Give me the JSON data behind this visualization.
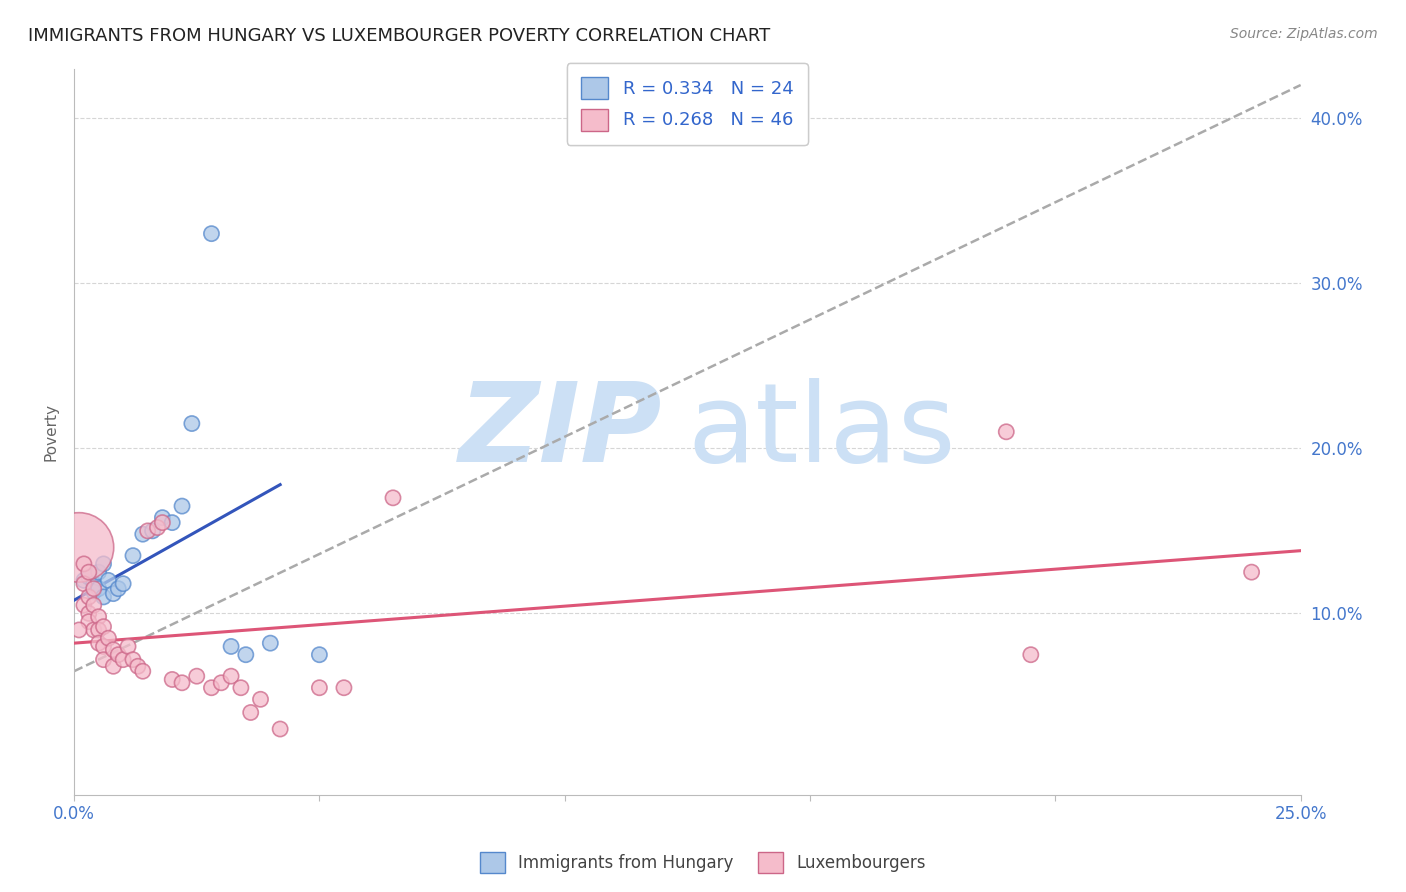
{
  "title": "IMMIGRANTS FROM HUNGARY VS LUXEMBOURGER POVERTY CORRELATION CHART",
  "source": "Source: ZipAtlas.com",
  "ylabel": "Poverty",
  "yaxis_labels": [
    "10.0%",
    "20.0%",
    "30.0%",
    "40.0%"
  ],
  "yaxis_values": [
    0.1,
    0.2,
    0.3,
    0.4
  ],
  "legend_entry1": "R = 0.334   N = 24",
  "legend_entry2": "R = 0.268   N = 46",
  "legend_label1": "Immigrants from Hungary",
  "legend_label2": "Luxembourgers",
  "blue_color": "#adc8e8",
  "blue_line_color": "#3355bb",
  "blue_edge_color": "#5588cc",
  "pink_color": "#f5bccb",
  "pink_line_color": "#dd5577",
  "pink_edge_color": "#cc6688",
  "watermark_zip": "ZIP",
  "watermark_atlas": "atlas",
  "watermark_color": "#cce0f5",
  "background_color": "#ffffff",
  "grid_color": "#cccccc",
  "title_color": "#222222",
  "axis_label_color": "#4477cc",
  "blue_scatter": [
    [
      0.002,
      0.12
    ],
    [
      0.003,
      0.122
    ],
    [
      0.004,
      0.118
    ],
    [
      0.004,
      0.113
    ],
    [
      0.005,
      0.125
    ],
    [
      0.005,
      0.115
    ],
    [
      0.006,
      0.13
    ],
    [
      0.006,
      0.11
    ],
    [
      0.007,
      0.12
    ],
    [
      0.008,
      0.112
    ],
    [
      0.009,
      0.115
    ],
    [
      0.01,
      0.118
    ],
    [
      0.012,
      0.135
    ],
    [
      0.014,
      0.148
    ],
    [
      0.016,
      0.15
    ],
    [
      0.018,
      0.158
    ],
    [
      0.02,
      0.155
    ],
    [
      0.022,
      0.165
    ],
    [
      0.024,
      0.215
    ],
    [
      0.032,
      0.08
    ],
    [
      0.035,
      0.075
    ],
    [
      0.04,
      0.082
    ],
    [
      0.05,
      0.075
    ],
    [
      0.028,
      0.33
    ]
  ],
  "blue_scatter_sizes": [
    120,
    120,
    120,
    120,
    120,
    120,
    120,
    120,
    120,
    120,
    120,
    120,
    120,
    120,
    120,
    120,
    120,
    120,
    120,
    120,
    120,
    120,
    120,
    120
  ],
  "pink_scatter": [
    [
      0.001,
      0.14
    ],
    [
      0.002,
      0.13
    ],
    [
      0.002,
      0.118
    ],
    [
      0.002,
      0.105
    ],
    [
      0.003,
      0.125
    ],
    [
      0.003,
      0.11
    ],
    [
      0.003,
      0.1
    ],
    [
      0.003,
      0.095
    ],
    [
      0.004,
      0.115
    ],
    [
      0.004,
      0.105
    ],
    [
      0.004,
      0.09
    ],
    [
      0.005,
      0.098
    ],
    [
      0.005,
      0.09
    ],
    [
      0.005,
      0.082
    ],
    [
      0.006,
      0.092
    ],
    [
      0.006,
      0.08
    ],
    [
      0.006,
      0.072
    ],
    [
      0.007,
      0.085
    ],
    [
      0.008,
      0.078
    ],
    [
      0.008,
      0.068
    ],
    [
      0.009,
      0.075
    ],
    [
      0.01,
      0.072
    ],
    [
      0.011,
      0.08
    ],
    [
      0.012,
      0.072
    ],
    [
      0.013,
      0.068
    ],
    [
      0.014,
      0.065
    ],
    [
      0.015,
      0.15
    ],
    [
      0.017,
      0.152
    ],
    [
      0.018,
      0.155
    ],
    [
      0.02,
      0.06
    ],
    [
      0.022,
      0.058
    ],
    [
      0.025,
      0.062
    ],
    [
      0.028,
      0.055
    ],
    [
      0.03,
      0.058
    ],
    [
      0.032,
      0.062
    ],
    [
      0.034,
      0.055
    ],
    [
      0.036,
      0.04
    ],
    [
      0.038,
      0.048
    ],
    [
      0.042,
      0.03
    ],
    [
      0.05,
      0.055
    ],
    [
      0.055,
      0.055
    ],
    [
      0.065,
      0.17
    ],
    [
      0.19,
      0.21
    ],
    [
      0.195,
      0.075
    ],
    [
      0.24,
      0.125
    ],
    [
      0.001,
      0.09
    ]
  ],
  "pink_scatter_sizes": [
    2500,
    120,
    120,
    120,
    120,
    120,
    120,
    120,
    120,
    120,
    120,
    120,
    120,
    120,
    120,
    120,
    120,
    120,
    120,
    120,
    120,
    120,
    120,
    120,
    120,
    120,
    120,
    120,
    120,
    120,
    120,
    120,
    120,
    120,
    120,
    120,
    120,
    120,
    120,
    120,
    120,
    120,
    120,
    120,
    120,
    120
  ],
  "xlim": [
    0.0,
    0.25
  ],
  "ylim": [
    -0.01,
    0.43
  ],
  "blue_trend_x": [
    0.0,
    0.042
  ],
  "blue_trend_y": [
    0.108,
    0.178
  ],
  "dashed_trend_x": [
    0.0,
    0.25
  ],
  "dashed_trend_y": [
    0.065,
    0.42
  ],
  "pink_trend_x": [
    0.0,
    0.25
  ],
  "pink_trend_y": [
    0.082,
    0.138
  ]
}
